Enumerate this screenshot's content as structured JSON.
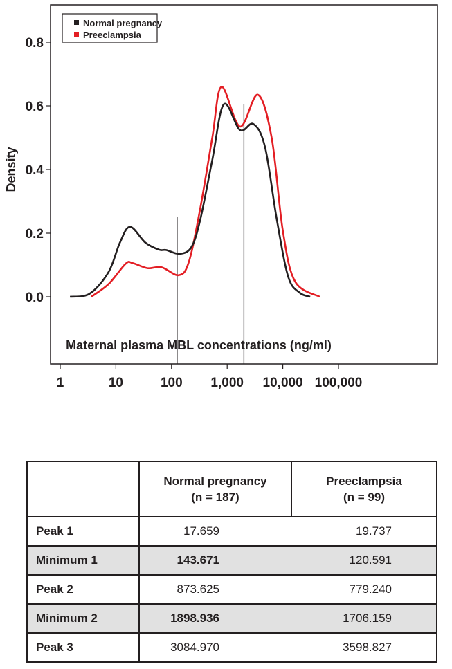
{
  "chart_data": {
    "type": "line",
    "title": "",
    "xlabel": "Maternal plasma MBL concentrations (ng/ml)",
    "ylabel": "Density",
    "xscale": "log",
    "xlim": [
      1,
      100000
    ],
    "ylim": [
      0,
      0.8
    ],
    "x_ticks": [
      1,
      10,
      100,
      1000,
      10000,
      100000
    ],
    "x_tick_labels": [
      "1",
      "10",
      "100",
      "1,000",
      "10,000",
      "100,000"
    ],
    "y_ticks": [
      0,
      0.2,
      0.4,
      0.6,
      0.8
    ],
    "y_tick_labels": [
      "0.0",
      "0.2",
      "0.4",
      "0.6",
      "0.8"
    ],
    "legend_position": "top-left",
    "series": [
      {
        "name": "Normal pregnancy",
        "color": "#231f20",
        "x": [
          1.5,
          3.4,
          7.4,
          11.8,
          18,
          34,
          60,
          80,
          141,
          229,
          330,
          540,
          870,
          1700,
          2960,
          4800,
          7760,
          12500,
          20000,
          31000
        ],
        "y": [
          0,
          0.01,
          0.078,
          0.17,
          0.22,
          0.17,
          0.148,
          0.147,
          0.135,
          0.157,
          0.244,
          0.43,
          0.605,
          0.524,
          0.543,
          0.47,
          0.245,
          0.063,
          0.013,
          0
        ]
      },
      {
        "name": "Preeclampsia",
        "color": "#e31e24",
        "x": [
          3.6,
          7.4,
          15,
          20,
          37,
          66,
          135,
          205,
          330,
          540,
          790,
          1700,
          3550,
          6300,
          10000,
          16600,
          46000
        ],
        "y": [
          0,
          0.04,
          0.104,
          0.106,
          0.09,
          0.093,
          0.068,
          0.11,
          0.28,
          0.5,
          0.66,
          0.535,
          0.635,
          0.5,
          0.208,
          0.048,
          0
        ]
      }
    ],
    "vertical_lines": [
      {
        "x": 126,
        "y_top": 0.25
      },
      {
        "x": 2000,
        "y_top": 0.605
      }
    ]
  },
  "table": {
    "headers": [
      "",
      "Normal pregnancy",
      "(n = 187)",
      "Preeclampsia",
      "(n = 99)"
    ],
    "rows": [
      {
        "label": "Peak 1",
        "normal": "17.659",
        "preeclampsia": "19.737"
      },
      {
        "label": "Minimum 1",
        "normal": "143.671",
        "preeclampsia": "120.591"
      },
      {
        "label": "Peak 2",
        "normal": "873.625",
        "preeclampsia": "779.240"
      },
      {
        "label": "Minimum  2",
        "normal": "1898.936",
        "preeclampsia": "1706.159"
      },
      {
        "label": "Peak 3",
        "normal": "3084.970",
        "preeclampsia": "3598.827"
      }
    ]
  }
}
